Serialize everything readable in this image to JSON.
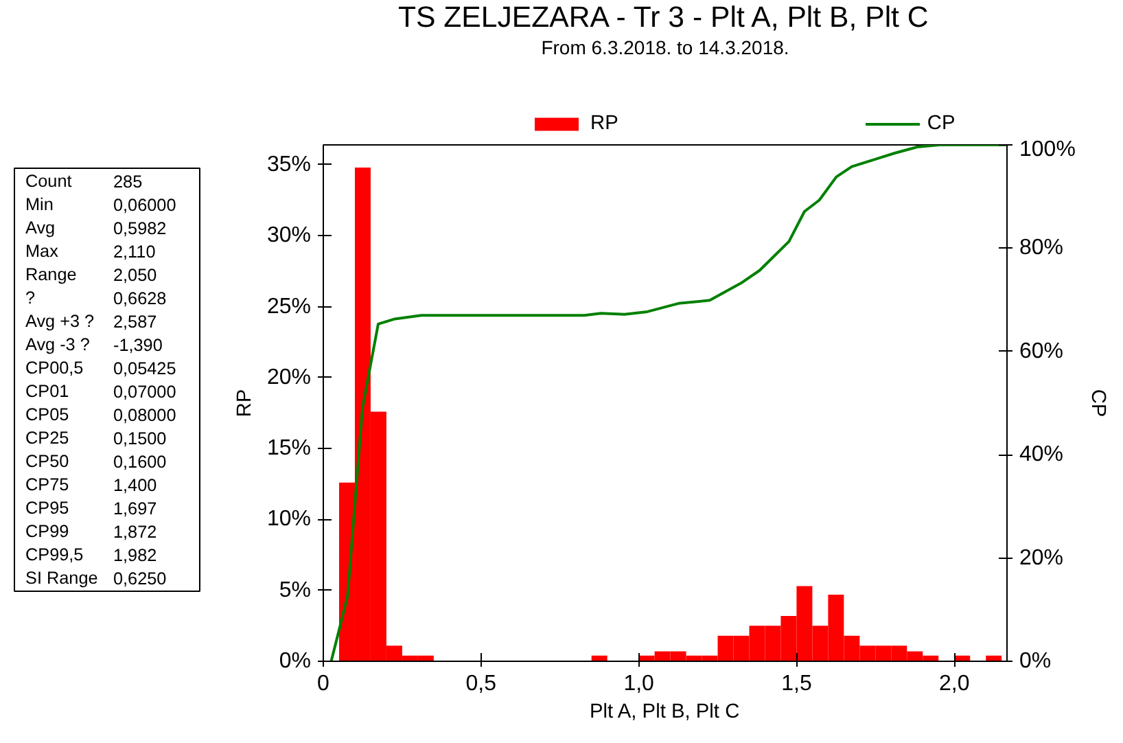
{
  "chart_data": {
    "type": "histogram",
    "title": "TS ZELJEZARA - Tr 3 - Plt A, Plt B, Plt C",
    "subtitle": "From 6.3.2018. to 14.3.2018.",
    "xlabel": "Plt A, Plt B, Plt C",
    "ylabel": "RP",
    "y2label": "CP",
    "bins": [
      0.05,
      0.1,
      0.15,
      0.2,
      0.25,
      0.3,
      0.35,
      0.4,
      0.45,
      0.5,
      0.55,
      0.6,
      0.65,
      0.7,
      0.75,
      0.8,
      0.85,
      0.9,
      0.95,
      1.0,
      1.05,
      1.1,
      1.15,
      1.2,
      1.25,
      1.3,
      1.35,
      1.4,
      1.45,
      1.5,
      1.55,
      1.6,
      1.65,
      1.7,
      1.75,
      1.8,
      1.85,
      1.9,
      1.95,
      2.0,
      2.05,
      2.1,
      2.15
    ],
    "series": [
      {
        "name": "RP",
        "color": "#ff0000",
        "values": [
          12.6,
          34.8,
          17.6,
          1.1,
          0.4,
          0.4,
          0,
          0,
          0,
          0,
          0,
          0,
          0,
          0,
          0,
          0,
          0.4,
          0,
          0,
          0.4,
          0.7,
          0.7,
          0.4,
          0.4,
          1.8,
          1.8,
          2.5,
          2.5,
          3.2,
          5.3,
          2.5,
          4.7,
          1.8,
          1.1,
          1.1,
          1.1,
          0.7,
          0.4,
          0,
          0.4,
          0,
          0.4
        ]
      },
      {
        "name": "CP",
        "type": "line",
        "axis": "y2",
        "color": "#008000",
        "x": [
          0.025,
          0.077,
          0.124,
          0.174,
          0.227,
          0.31,
          0.827,
          0.88,
          0.955,
          1.027,
          1.126,
          1.225,
          1.323,
          1.383,
          1.476,
          1.525,
          1.572,
          1.626,
          1.675,
          1.811,
          1.883,
          1.953,
          2.167
        ],
        "values": [
          0,
          12.6,
          49,
          65.3,
          66.3,
          67.0,
          67.0,
          67.4,
          67.2,
          67.7,
          69.3,
          69.9,
          73.2,
          75.7,
          81.3,
          87.1,
          89.3,
          93.8,
          95.8,
          98.4,
          99.6,
          100,
          100
        ]
      }
    ],
    "xlim": [
      0,
      2.167
    ],
    "ylim": [
      0,
      36.4
    ],
    "y2lim": [
      0,
      100
    ],
    "xticks": [
      0,
      {
        "value": 0.5,
        "label": "0,5"
      },
      {
        "value": 1,
        "label": "1,0"
      },
      {
        "value": 1.5,
        "label": "1,5"
      },
      {
        "value": 2,
        "label": "2,0"
      }
    ],
    "yticks": [
      {
        "value": 0,
        "label": "0%"
      },
      {
        "value": 5,
        "label": "5%"
      },
      {
        "value": 10,
        "label": "10%"
      },
      {
        "value": 15,
        "label": "15%"
      },
      {
        "value": 20,
        "label": "20%"
      },
      {
        "value": 25,
        "label": "25%"
      },
      {
        "value": 30,
        "label": "30%"
      },
      {
        "value": 35,
        "label": "35%"
      }
    ],
    "y2ticks": [
      {
        "value": 0,
        "label": "0%"
      },
      {
        "value": 20,
        "label": "20%"
      },
      {
        "value": 40,
        "label": "40%"
      },
      {
        "value": 60,
        "label": "60%"
      },
      {
        "value": 80,
        "label": "80%"
      },
      {
        "value": 100,
        "label": "100%"
      }
    ],
    "legend": "top",
    "grid": false,
    "annotations": [
      "Count 285",
      "Min 0,06000",
      "Avg 0,5982",
      "Max 2,110",
      "Range 2,050",
      "? 0,6628",
      "Avg +3 ? 2,587",
      "Avg -3 ? -1,390",
      "CP00,5 0,05425",
      "CP01 0,07000",
      "CP05 0,08000",
      "CP25 0,1500",
      "CP50 0,1600",
      "CP75 1,400",
      "CP95 1,697",
      "CP99 1,872",
      "CP99,5 1,982",
      "SI Range 0,6250"
    ]
  }
}
